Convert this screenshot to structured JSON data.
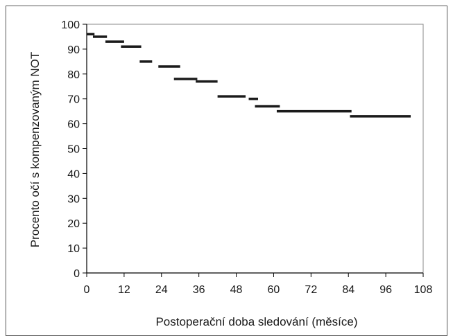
{
  "chart_data": {
    "type": "line",
    "title": "",
    "xlabel": "Postoperační doba sledování (měsíce)",
    "ylabel": "Procento očí s kompenzovaným NOT",
    "xlim": [
      0,
      108
    ],
    "ylim": [
      0,
      100
    ],
    "xticks": [
      0,
      12,
      24,
      36,
      48,
      60,
      72,
      84,
      96,
      108
    ],
    "yticks": [
      0,
      10,
      20,
      30,
      40,
      50,
      60,
      70,
      80,
      90,
      100
    ],
    "grid": false,
    "legend": "none",
    "series": [
      {
        "style": "step-segments",
        "color": "#1a1a1a",
        "segments": [
          {
            "x0": 0,
            "x1": 2.5,
            "y": 96
          },
          {
            "x0": 2,
            "x1": 6.5,
            "y": 95
          },
          {
            "x0": 6,
            "x1": 12,
            "y": 93
          },
          {
            "x0": 11,
            "x1": 17.5,
            "y": 91
          },
          {
            "x0": 17,
            "x1": 21,
            "y": 85
          },
          {
            "x0": 23,
            "x1": 30,
            "y": 83
          },
          {
            "x0": 28,
            "x1": 35.5,
            "y": 78
          },
          {
            "x0": 35,
            "x1": 42,
            "y": 77
          },
          {
            "x0": 42,
            "x1": 51,
            "y": 71
          },
          {
            "x0": 52,
            "x1": 55,
            "y": 70
          },
          {
            "x0": 54,
            "x1": 62,
            "y": 67
          },
          {
            "x0": 61,
            "x1": 85,
            "y": 65
          },
          {
            "x0": 84.5,
            "x1": 104,
            "y": 63
          }
        ]
      }
    ]
  }
}
